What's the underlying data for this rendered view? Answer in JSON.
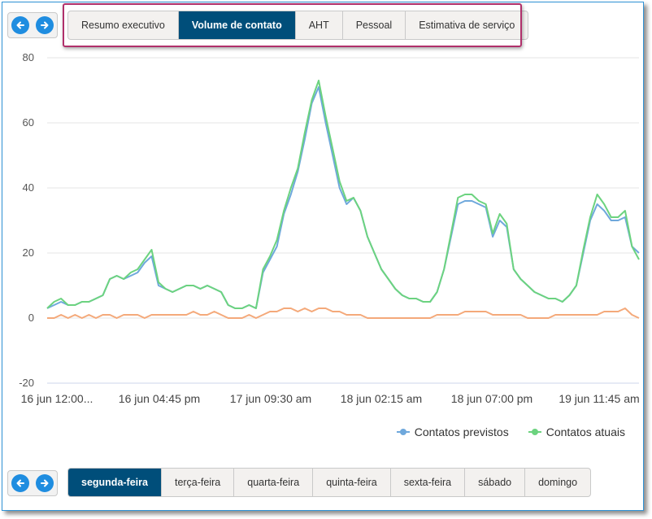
{
  "top_nav": {
    "prev_icon": "arrow-left-icon",
    "next_icon": "arrow-right-icon"
  },
  "top_tabs": [
    {
      "label": "Resumo executivo",
      "active": false
    },
    {
      "label": "Volume de contato",
      "active": true
    },
    {
      "label": "AHT",
      "active": false
    },
    {
      "label": "Pessoal",
      "active": false
    },
    {
      "label": "Estimativa de serviço",
      "active": false
    }
  ],
  "day_tabs": [
    {
      "label": "segunda-feira",
      "active": true
    },
    {
      "label": "terça-feira",
      "active": false
    },
    {
      "label": "quarta-feira",
      "active": false
    },
    {
      "label": "quinta-feira",
      "active": false
    },
    {
      "label": "sexta-feira",
      "active": false
    },
    {
      "label": "sábado",
      "active": false
    },
    {
      "label": "domingo",
      "active": false
    }
  ],
  "legend": [
    {
      "label": "Contatos previstos",
      "color": "#6fa8dc"
    },
    {
      "label": "Contatos atuais",
      "color": "#6cd37f"
    }
  ],
  "chart_data": {
    "type": "line",
    "ylim": [
      -20,
      80
    ],
    "y_ticks": [
      80,
      60,
      40,
      20,
      0,
      -20
    ],
    "x_tick_labels": [
      "16 jun 12:00...",
      "16 jun 04:45 pm",
      "17 jun 09:30 am",
      "18 jun 02:15 am",
      "18 jun 07:00 pm",
      "19 jun 11:45 am"
    ],
    "grid": true,
    "legend_position": "bottom-right",
    "series": [
      {
        "name": "Contatos previstos",
        "color": "#6fa8dc",
        "values": [
          3,
          4,
          5,
          4,
          4,
          5,
          5,
          6,
          7,
          12,
          13,
          12,
          13,
          14,
          17,
          19,
          10,
          9,
          8,
          9,
          10,
          10,
          9,
          10,
          9,
          8,
          4,
          3,
          3,
          4,
          3,
          14,
          18,
          22,
          32,
          38,
          45,
          55,
          66,
          71,
          60,
          50,
          40,
          35,
          37,
          33,
          25,
          20,
          15,
          12,
          9,
          7,
          6,
          6,
          5,
          5,
          8,
          15,
          25,
          35,
          36,
          36,
          35,
          34,
          25,
          30,
          28,
          15,
          12,
          10,
          8,
          7,
          6,
          6,
          5,
          7,
          10,
          20,
          30,
          35,
          33,
          30,
          30,
          31,
          22,
          20
        ]
      },
      {
        "name": "Contatos atuais",
        "color": "#6cd37f",
        "values": [
          3,
          5,
          6,
          4,
          4,
          5,
          5,
          6,
          7,
          12,
          13,
          12,
          14,
          15,
          18,
          21,
          11,
          9,
          8,
          9,
          10,
          10,
          9,
          10,
          9,
          8,
          4,
          3,
          3,
          4,
          3,
          15,
          19,
          24,
          33,
          40,
          46,
          57,
          67,
          73,
          62,
          52,
          42,
          36,
          37,
          33,
          25,
          20,
          15,
          12,
          9,
          7,
          6,
          6,
          5,
          5,
          8,
          15,
          26,
          37,
          38,
          38,
          36,
          35,
          26,
          32,
          29,
          15,
          12,
          10,
          8,
          7,
          6,
          6,
          5,
          7,
          10,
          21,
          31,
          38,
          35,
          31,
          31,
          33,
          22,
          18
        ]
      },
      {
        "name": "",
        "color": "#f4a97a",
        "values": [
          0,
          0,
          1,
          0,
          1,
          0,
          1,
          0,
          1,
          1,
          0,
          1,
          1,
          1,
          0,
          1,
          1,
          1,
          1,
          1,
          1,
          2,
          1,
          1,
          2,
          1,
          0,
          0,
          0,
          1,
          0,
          1,
          2,
          2,
          3,
          3,
          2,
          3,
          2,
          3,
          3,
          2,
          2,
          1,
          1,
          1,
          0,
          0,
          0,
          0,
          0,
          0,
          0,
          0,
          0,
          0,
          1,
          1,
          1,
          1,
          2,
          2,
          2,
          2,
          1,
          1,
          1,
          1,
          1,
          0,
          0,
          0,
          0,
          1,
          1,
          1,
          1,
          1,
          1,
          1,
          2,
          2,
          2,
          3,
          1,
          0
        ]
      }
    ]
  }
}
